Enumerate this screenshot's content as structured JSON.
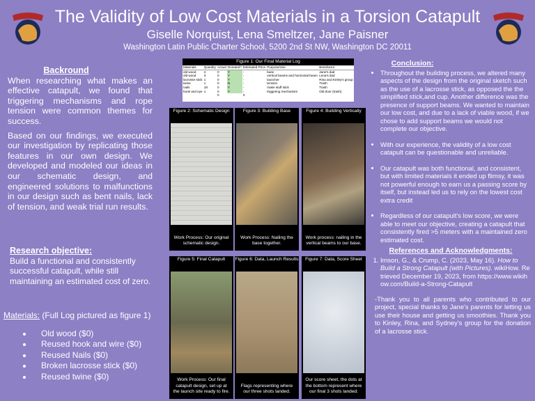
{
  "header": {
    "title": "The Validity of Low Cost Materials in a Torsion Catapult",
    "authors": "Giselle Norquist, Lena Smeltzer, Jane Paisner",
    "school": "Washington Latin Public Charter School, 5200 2nd St NW, Washington DC 20011"
  },
  "background": {
    "heading": "Backround",
    "paragraphs": [
      "When researching what makes an effective catapult, we found that triggering mechanisms and rope tension were common themes for success.",
      "Based on our findings, we executed our investigation by replicating those features in our own design. We developed and modeled our ideas in our schematic design, and engineered solutions to malfunctions in our design such as bent nails, lack of tension, and weak trial run results."
    ]
  },
  "objective": {
    "heading": "Research objective:",
    "text": "Build a functional and consistently successful  catapult, while still maintaining an estimated cost of zero."
  },
  "materials": {
    "heading": "Materials:",
    "note": "(Full Log pictured as figure 1)",
    "items": [
      "Old wood ($0)",
      "Reused hook and wire ($0)",
      "Reused Nails ($0)",
      "Broken lacrosse stick ($0)",
      "Reused twine ($0)"
    ]
  },
  "figure1": {
    "caption": "Figure 1: Our Final Material Log",
    "columns": [
      "Materials",
      "Quantity",
      "Actual",
      "Donated?",
      "Estimated Price",
      "Purpose/Use",
      "Benefactor"
    ],
    "rows": [
      [
        "old wood",
        "4",
        "0",
        "Y",
        "-",
        "base",
        "Jane's dad"
      ],
      [
        "old wood",
        "3",
        "0",
        "Y",
        "-",
        "vertical beams and horizontal beam",
        "Lena's dad"
      ],
      [
        "lacrosse stick",
        "1",
        "0",
        "Y",
        "-",
        "launcher",
        "Rina and Kinley's group"
      ],
      [
        "twine",
        "1",
        "0",
        "N",
        "-",
        "tension",
        "Trash"
      ],
      [
        "nails",
        "18",
        "0",
        "Y",
        "-",
        "make stuff stick",
        "Trash"
      ],
      [
        "hook and eye",
        "1",
        "0",
        "Y",
        "-",
        "triggering mechanism",
        "Old door (trash)"
      ]
    ],
    "totals": [
      "0",
      "0"
    ]
  },
  "figures": [
    {
      "title": "Figure 2: Schematic Design",
      "caption": "Work Process: Our original schematic design."
    },
    {
      "title": "Figure 3: Building Base",
      "caption": "Work Process: Nailing the base together."
    },
    {
      "title": "Figure 4: Building Vertically",
      "caption": "Work process: nailing in the vertical beams to our base."
    },
    {
      "title": "Figure 5: Final Catapult",
      "caption": "Work Process: Our final catapult design, set up at the launch site ready to fire."
    },
    {
      "title": "Figure 6: Data, Launch Results",
      "caption": "Flags representing where our three shots landed."
    },
    {
      "title": "Figure 7: Data, Score Sheet",
      "caption": "Our score sheet, the dots at the bottom represent where our final 3 shots landed."
    }
  ],
  "conclusion": {
    "heading": "Conclusion:",
    "bullets": [
      "Throughout the building process, we altered many aspects of the design from the original sketch such as the use of a lacrosse stick, as opposed the the simplified stick,and cup. Another difference was the presence of support beams. We wanted to maintain our low cost, and due to a lack of viable wood, if we chose to add support beams we would not complete our objective.",
      "With our experience, the validity of a low cost catapult can be questionable and unreliable.",
      "Our catapult was both  functional, and consistent, but with limited materials it ended up flimsy, it was not powerful enough to earn us a passing score by itself, but instead led us to rely on the lowest cost extra credit",
      "Regardless of our catapult's low score, we were able to meet our objective, creating a catapult that consistently fired >5 meters with a maintained zero estimated cost."
    ]
  },
  "references": {
    "heading": "References and Acknowledgments:",
    "items": [
      {
        "authors": "Imson, G., & Crump, C. (2023, May 16).",
        "title": "How to Build a Strong Catapult (with Pictures).",
        "source": "wikiHow. Retrieved December 19, 2023, from https://www.wikihow.com/Build-a-Strong-Catapult"
      }
    ],
    "thanks": "-Thank you to all  parents who contributed to our project, special thanks to Jane's parents for letting us use their house and getting us smoothies. Thank you to Kinley, Rina, and Sydney's group for the donation of a lacrosse stick."
  }
}
